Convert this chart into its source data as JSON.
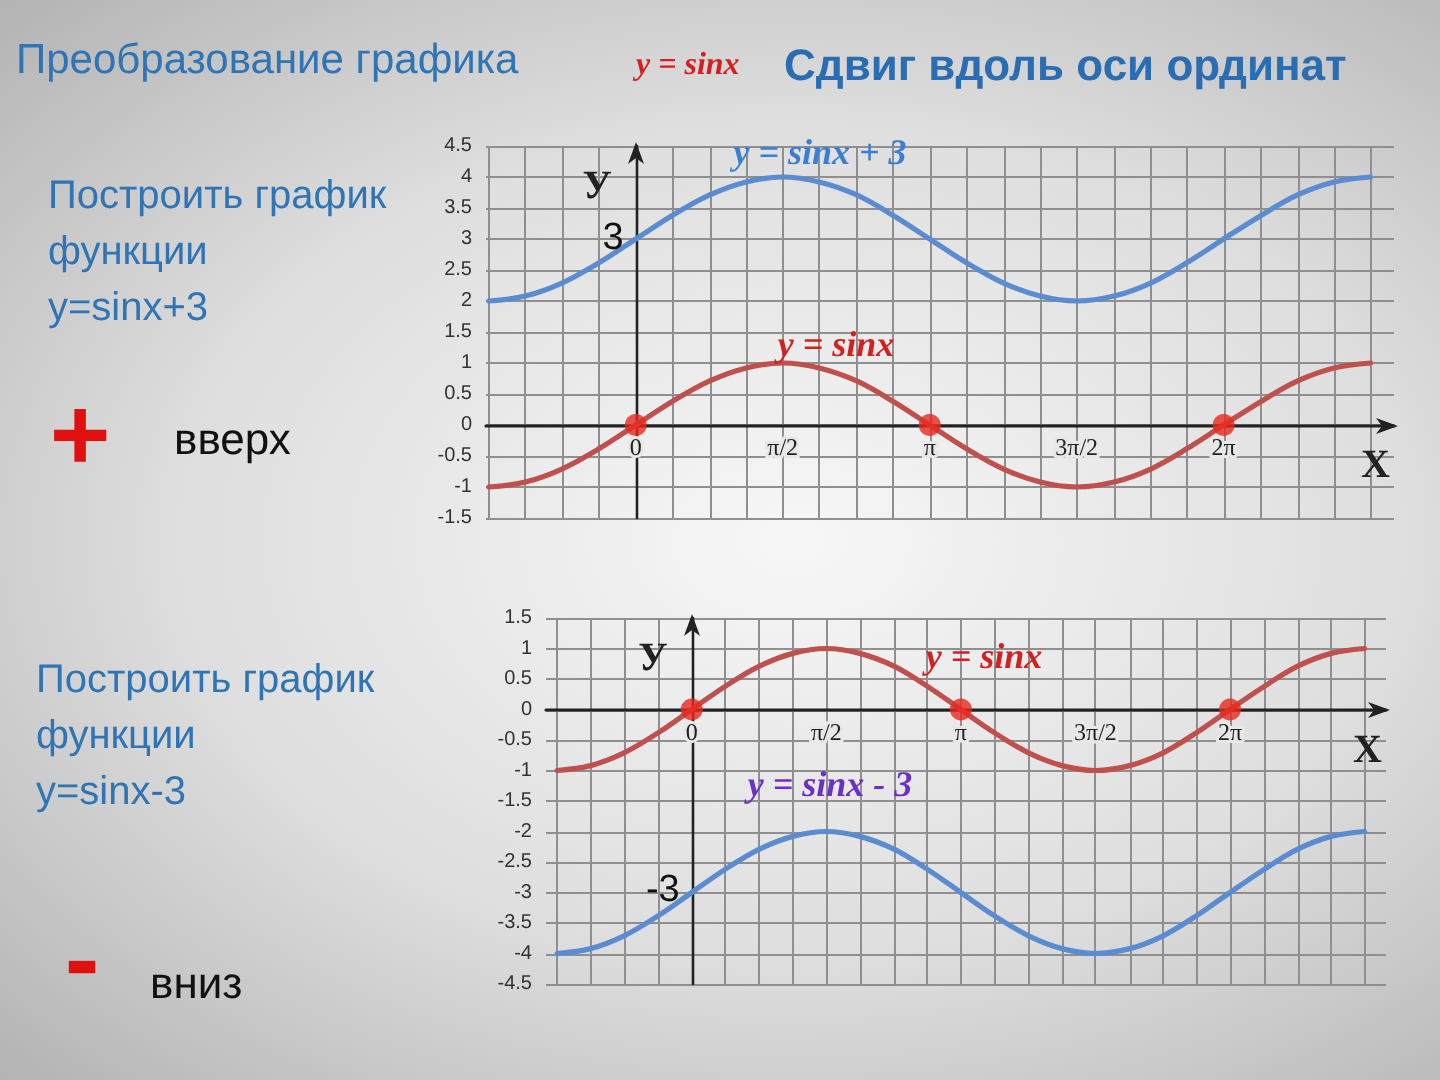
{
  "chart_data": [
    {
      "type": "line",
      "title": "Преобразование графика",
      "subtitle": "Сдвиг вдоль оси ординат",
      "xlabel": "X",
      "ylabel": "У",
      "annotations": [
        "y = sinx",
        "Построить график функции\ny=sinx+3",
        "+",
        "вверх",
        "y = sinx + 3",
        "y = sinx",
        {
          "text": "3",
          "x": 0,
          "y": 3
        }
      ],
      "xlim": [
        -1.6,
        8.1
      ],
      "xticks": [
        {
          "value": -1.57,
          "label": null
        },
        {
          "value": -1.18,
          "label": null
        },
        {
          "value": -0.79,
          "label": null
        },
        {
          "value": -0.39,
          "label": null
        },
        0,
        {
          "value": 0.39,
          "label": null
        },
        {
          "value": 0.79,
          "label": null
        },
        {
          "value": 1.18,
          "label": null
        },
        {
          "value": 1.57,
          "label": "π/2"
        },
        {
          "value": 1.96,
          "label": null
        },
        {
          "value": 2.36,
          "label": null
        },
        {
          "value": 2.75,
          "label": null
        },
        {
          "value": 3.14,
          "label": "π"
        },
        {
          "value": 3.53,
          "label": null
        },
        {
          "value": 3.93,
          "label": null
        },
        {
          "value": 4.32,
          "label": null
        },
        {
          "value": 4.71,
          "label": "3π/2"
        },
        {
          "value": 5.11,
          "label": null
        },
        {
          "value": 5.5,
          "label": null
        },
        {
          "value": 5.89,
          "label": null
        },
        {
          "value": 6.28,
          "label": "2π"
        },
        {
          "value": 6.68,
          "label": null
        },
        {
          "value": 7.07,
          "label": null
        },
        {
          "value": 7.46,
          "label": null
        },
        {
          "value": 7.85,
          "label": null
        }
      ],
      "ylim": [
        -1.5,
        4.5
      ],
      "yticks": [
        -1.5,
        -1,
        -0.5,
        0,
        0.5,
        1,
        1.5,
        2,
        2.5,
        3,
        3.5,
        4,
        4.5
      ],
      "grid": true,
      "x": [
        -1.57,
        -1.18,
        -0.79,
        -0.39,
        0,
        0.39,
        0.79,
        1.18,
        1.57,
        1.96,
        2.36,
        2.75,
        3.14,
        3.53,
        3.93,
        4.32,
        4.71,
        5.11,
        5.5,
        5.89,
        6.28,
        6.68,
        7.07,
        7.46,
        7.85
      ],
      "series": [
        {
          "color": "#5b8bd0",
          "values": [
            2,
            2.08,
            2.29,
            2.62,
            3,
            3.38,
            3.71,
            3.92,
            4,
            3.92,
            3.71,
            3.38,
            3,
            2.62,
            2.29,
            2.08,
            2,
            2.08,
            2.29,
            2.62,
            3,
            3.38,
            3.71,
            3.92,
            4
          ]
        },
        {
          "color": "#c0504d",
          "values": [
            -1,
            -0.92,
            -0.71,
            -0.38,
            0,
            0.38,
            0.71,
            0.92,
            1,
            0.92,
            0.71,
            0.38,
            0,
            -0.38,
            -0.71,
            -0.92,
            -1,
            -0.92,
            -0.71,
            -0.38,
            0,
            0.38,
            0.71,
            0.92,
            1
          ]
        },
        {
          "type": "scatter",
          "color": "#e8281e",
          "x": [
            0,
            3.14,
            6.28
          ],
          "values": [
            0,
            0,
            0
          ]
        }
      ]
    },
    {
      "type": "line",
      "xlabel": "X",
      "ylabel": "У",
      "annotations": [
        "Построить график функции\ny=sinx-3",
        "-",
        "вниз",
        "y = sinx",
        "y = sinx - 3",
        {
          "text": "-3",
          "x": 0,
          "y": -3
        }
      ],
      "xlim": [
        -1.7,
        8.1
      ],
      "xticks": [
        {
          "value": -1.57,
          "label": null
        },
        {
          "value": -1.18,
          "label": null
        },
        {
          "value": -0.79,
          "label": null
        },
        {
          "value": -0.39,
          "label": null
        },
        0,
        {
          "value": 0.39,
          "label": null
        },
        {
          "value": 0.79,
          "label": null
        },
        {
          "value": 1.18,
          "label": null
        },
        {
          "value": 1.57,
          "label": "π/2"
        },
        {
          "value": 1.96,
          "label": null
        },
        {
          "value": 2.36,
          "label": null
        },
        {
          "value": 2.75,
          "label": null
        },
        {
          "value": 3.14,
          "label": "π"
        },
        {
          "value": 3.53,
          "label": null
        },
        {
          "value": 3.93,
          "label": null
        },
        {
          "value": 4.32,
          "label": null
        },
        {
          "value": 4.71,
          "label": "3π/2"
        },
        {
          "value": 5.11,
          "label": null
        },
        {
          "value": 5.5,
          "label": null
        },
        {
          "value": 5.89,
          "label": null
        },
        {
          "value": 6.28,
          "label": "2π"
        },
        {
          "value": 6.68,
          "label": null
        },
        {
          "value": 7.07,
          "label": null
        },
        {
          "value": 7.46,
          "label": null
        },
        {
          "value": 7.85,
          "label": null
        }
      ],
      "ylim": [
        -4.5,
        1.5
      ],
      "yticks": [
        -4.5,
        -4,
        -3.5,
        -3,
        -2.5,
        -2,
        -1.5,
        -1,
        -0.5,
        0,
        0.5,
        1,
        1.5
      ],
      "grid": true,
      "x": [
        -1.57,
        -1.18,
        -0.79,
        -0.39,
        0,
        0.39,
        0.79,
        1.18,
        1.57,
        1.96,
        2.36,
        2.75,
        3.14,
        3.53,
        3.93,
        4.32,
        4.71,
        5.11,
        5.5,
        5.89,
        6.28,
        6.68,
        7.07,
        7.46,
        7.85
      ],
      "series": [
        {
          "color": "#c0504d",
          "values": [
            -1,
            -0.92,
            -0.71,
            -0.38,
            0,
            0.38,
            0.71,
            0.92,
            1,
            0.92,
            0.71,
            0.38,
            0,
            -0.38,
            -0.71,
            -0.92,
            -1,
            -0.92,
            -0.71,
            -0.38,
            0,
            0.38,
            0.71,
            0.92,
            1
          ]
        },
        {
          "color": "#5b8bd0",
          "values": [
            -4,
            -3.92,
            -3.71,
            -3.38,
            -3,
            -2.62,
            -2.29,
            -2.08,
            -2,
            -2.08,
            -2.29,
            -2.62,
            -3,
            -3.38,
            -3.71,
            -3.92,
            -4,
            -3.92,
            -3.71,
            -3.38,
            -3,
            -2.62,
            -2.29,
            -2.08,
            -2
          ]
        },
        {
          "type": "scatter",
          "color": "#e8281e",
          "x": [
            0,
            3.14,
            6.28
          ],
          "values": [
            0,
            0,
            0
          ]
        }
      ]
    }
  ]
}
